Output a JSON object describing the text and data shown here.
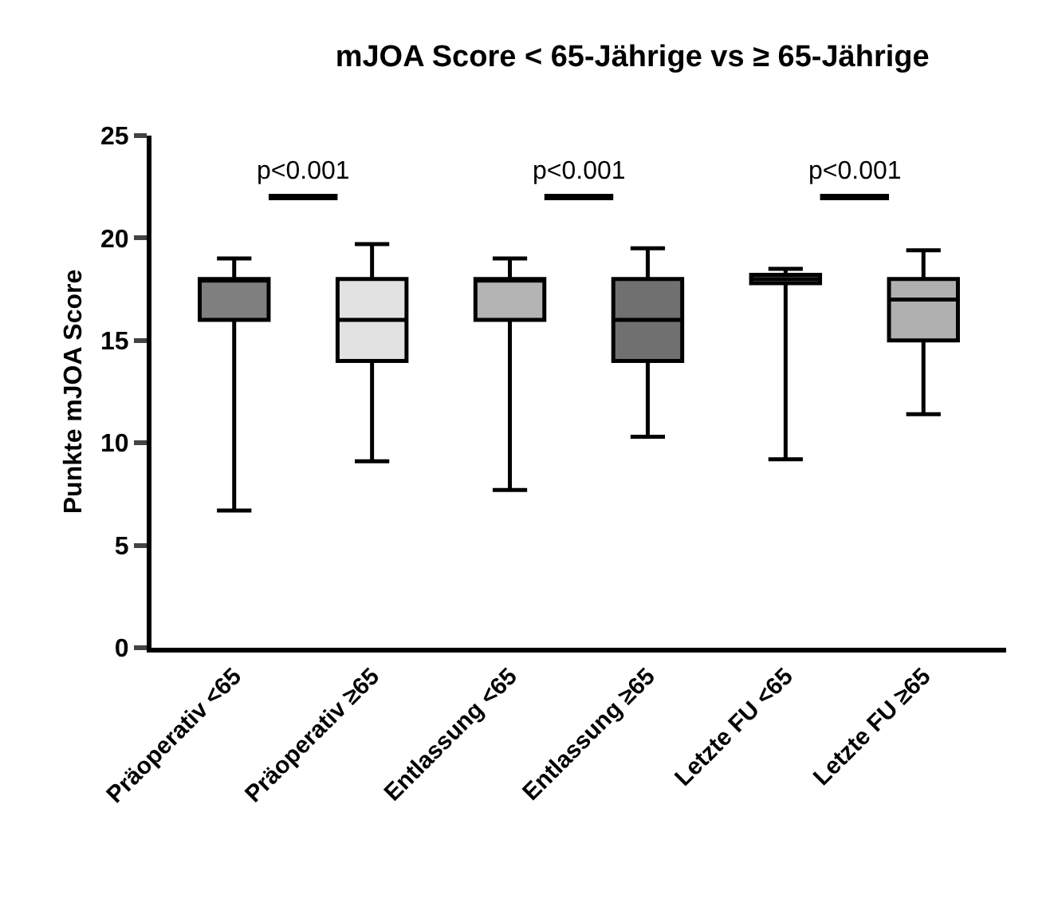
{
  "chart_data": {
    "type": "box",
    "title": "mJOA Score < 65-Jährige vs ≥ 65-Jährige",
    "ylabel": "Punkte mJOA Score",
    "categories": [
      "Präoperativ <65",
      "Präoperativ ≥65",
      "Entlassung <65",
      "Entlassung ≥65",
      "Letzte FU <65",
      "Letzte FU ≥65"
    ],
    "boxes": [
      {
        "low": 6.7,
        "q1": 16,
        "median": 18,
        "q3": 18,
        "high": 19
      },
      {
        "low": 9.1,
        "q1": 14,
        "median": 16,
        "q3": 18,
        "high": 19.7
      },
      {
        "low": 7.7,
        "q1": 16,
        "median": 18,
        "q3": 18,
        "high": 19
      },
      {
        "low": 10.3,
        "q1": 14,
        "median": 16,
        "q3": 18,
        "high": 19.5
      },
      {
        "low": 9.2,
        "q1": 17.8,
        "median": 18,
        "q3": 18.2,
        "high": 18.5
      },
      {
        "low": 11.4,
        "q1": 15,
        "median": 17,
        "q3": 18,
        "high": 19.4
      }
    ],
    "colors": [
      "#7f7f7f",
      "#e2e2e2",
      "#b4b4b4",
      "#707070",
      "#dcdcdc",
      "#b0b0b0"
    ],
    "annotations": [
      "p<0.001",
      "p<0.001",
      "p<0.001"
    ],
    "ylim": [
      0,
      25
    ],
    "yticks": [
      0,
      5,
      10,
      15,
      20,
      25
    ],
    "grid": false
  }
}
